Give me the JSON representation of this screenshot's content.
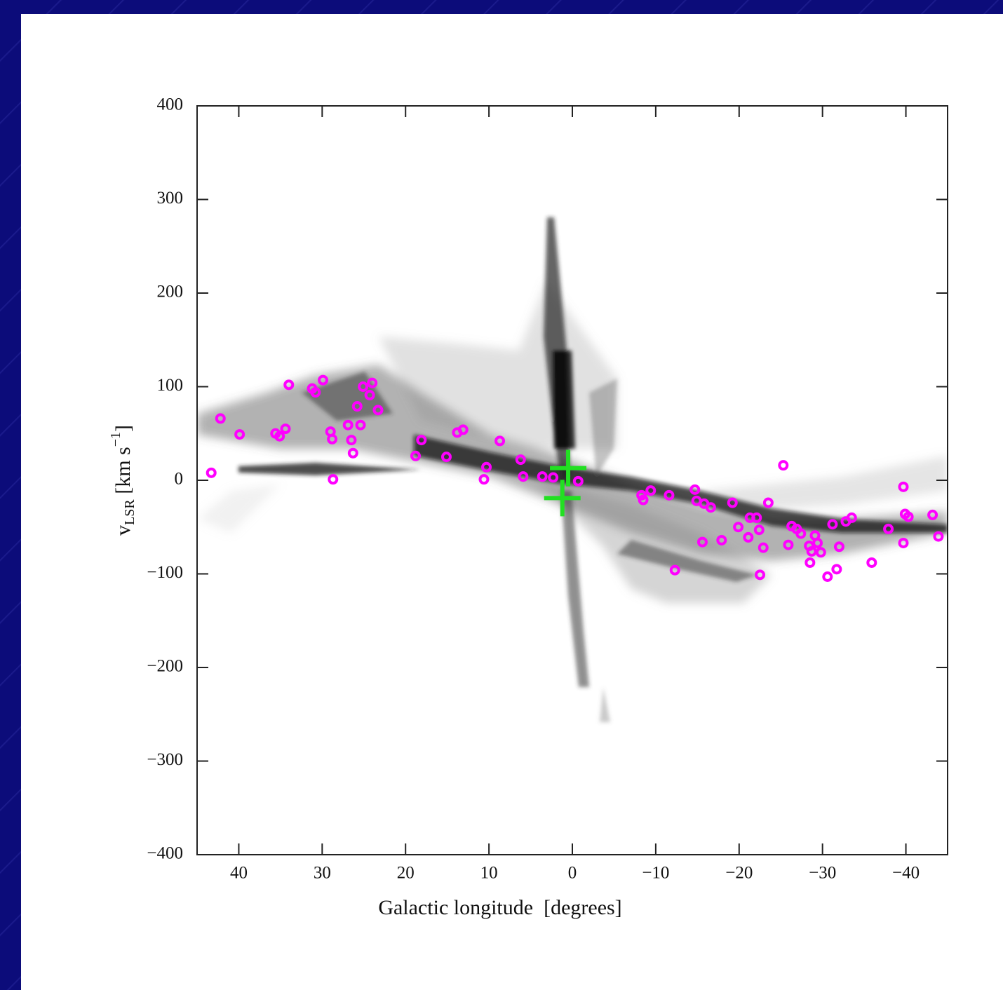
{
  "chart_data": {
    "type": "scatter",
    "x_label": "Galactic longitude  [degrees]",
    "y_label": {
      "main": "v",
      "sub": "LSR",
      "unit": " [km s",
      "sup": "−1",
      "close": "]"
    },
    "xlim": [
      45,
      -45
    ],
    "ylim": [
      -400,
      400
    ],
    "xticks": [
      40,
      30,
      20,
      10,
      0,
      {
        "value": -10,
        "label": "−10"
      },
      {
        "value": -20,
        "label": "−20"
      },
      {
        "value": -30,
        "label": "−30"
      },
      {
        "value": -40,
        "label": "−40"
      }
    ],
    "yticks": [
      {
        "value": -400,
        "label": "−400"
      },
      {
        "value": -300,
        "label": "−300"
      },
      {
        "value": -200,
        "label": "−200"
      },
      {
        "value": -100,
        "label": "−100"
      },
      0,
      100,
      200,
      300,
      400
    ],
    "series": [
      {
        "color": "#ff00ff",
        "marker": "circle",
        "x": [
          43.3,
          42.2,
          39.9,
          35.6,
          35.1,
          34.4,
          34.0,
          31.2,
          30.8,
          29.9,
          29.0,
          28.8,
          28.7,
          26.9,
          26.5,
          26.3,
          25.8,
          25.4,
          25.1,
          24.3,
          24.0,
          23.3,
          18.8,
          18.1,
          15.1,
          13.8,
          13.1,
          10.6,
          10.3,
          8.7,
          6.2,
          5.9,
          3.6,
          2.3,
          -0.7,
          -8.3,
          -8.5,
          -9.4,
          -11.6,
          -12.3,
          -14.7,
          -14.9,
          -15.6,
          -15.8,
          -16.6,
          -17.9,
          -19.2,
          -19.9,
          -21.1,
          -21.3,
          -22.1,
          -22.4,
          -22.5,
          -22.9,
          -23.5,
          -25.3,
          -25.9,
          -26.3,
          -26.9,
          -27.4,
          -28.4,
          -28.5,
          -28.7,
          -29.1,
          -29.4,
          -29.8,
          -30.6,
          -31.2,
          -31.7,
          -32.0,
          -32.8,
          -33.5,
          -35.9,
          -37.9,
          -39.7,
          -39.9,
          -40.3,
          -39.7,
          -43.2,
          -43.9
        ],
        "values": [
          8,
          66,
          49,
          50,
          47,
          55,
          102,
          98,
          94,
          107,
          52,
          44,
          1,
          59,
          43,
          29,
          79,
          59,
          100,
          91,
          104,
          75,
          26,
          43,
          25,
          51,
          54,
          1,
          14,
          42,
          22,
          4,
          4,
          3,
          -1,
          -16,
          -21,
          -11,
          -16,
          -96,
          -10,
          -22,
          -66,
          -25,
          -29,
          -64,
          -24,
          -50,
          -61,
          -40,
          -40,
          -53,
          -101,
          -72,
          -24,
          16,
          -69,
          -49,
          -52,
          -57,
          -70,
          -88,
          -76,
          -59,
          -67,
          -77,
          -103,
          -47,
          -95,
          -71,
          -44,
          -40,
          -88,
          -52,
          -7,
          -36,
          -39,
          -67,
          -37,
          -60
        ]
      },
      {
        "color": "#22e022",
        "marker": "cross",
        "x": [
          0.5,
          1.2
        ],
        "values": [
          13,
          -19
        ]
      }
    ]
  }
}
